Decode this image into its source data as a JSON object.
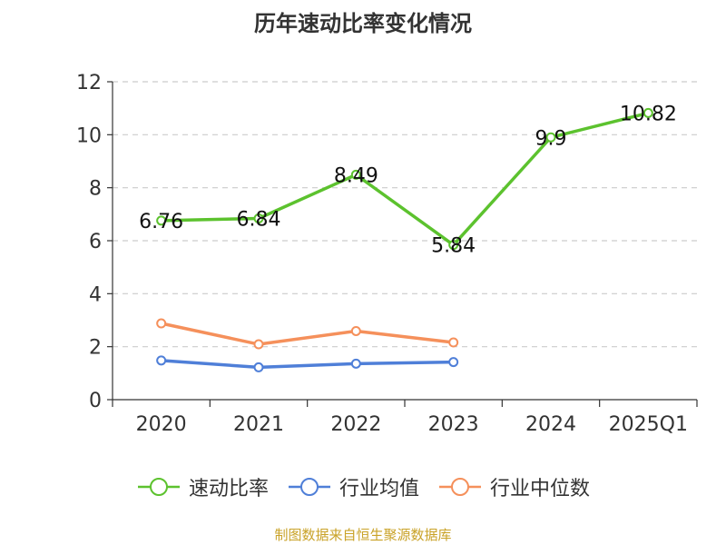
{
  "chart_data": {
    "type": "line",
    "title": "历年速动比率变化情况",
    "categories": [
      "2020",
      "2021",
      "2022",
      "2023",
      "2024",
      "2025Q1"
    ],
    "ylim": [
      0,
      12
    ],
    "yticks": [
      "0",
      "2",
      "4",
      "6",
      "8",
      "10",
      "12"
    ],
    "grid": true,
    "legend_position": "bottom",
    "series": [
      {
        "name": "速动比率",
        "color": "#5cc22e",
        "values": [
          6.76,
          6.84,
          8.49,
          5.84,
          9.9,
          10.82
        ],
        "labels": [
          "6.76",
          "6.84",
          "8.49",
          "5.84",
          "9.9",
          "10.82"
        ]
      },
      {
        "name": "行业均值",
        "color": "#4f7fd8",
        "values": [
          1.48,
          1.22,
          1.36,
          1.42,
          null,
          null
        ]
      },
      {
        "name": "行业中位数",
        "color": "#f5905b",
        "values": [
          2.88,
          2.09,
          2.59,
          2.16,
          null,
          null
        ]
      }
    ]
  },
  "source_note": "制图数据来自恒生聚源数据库"
}
